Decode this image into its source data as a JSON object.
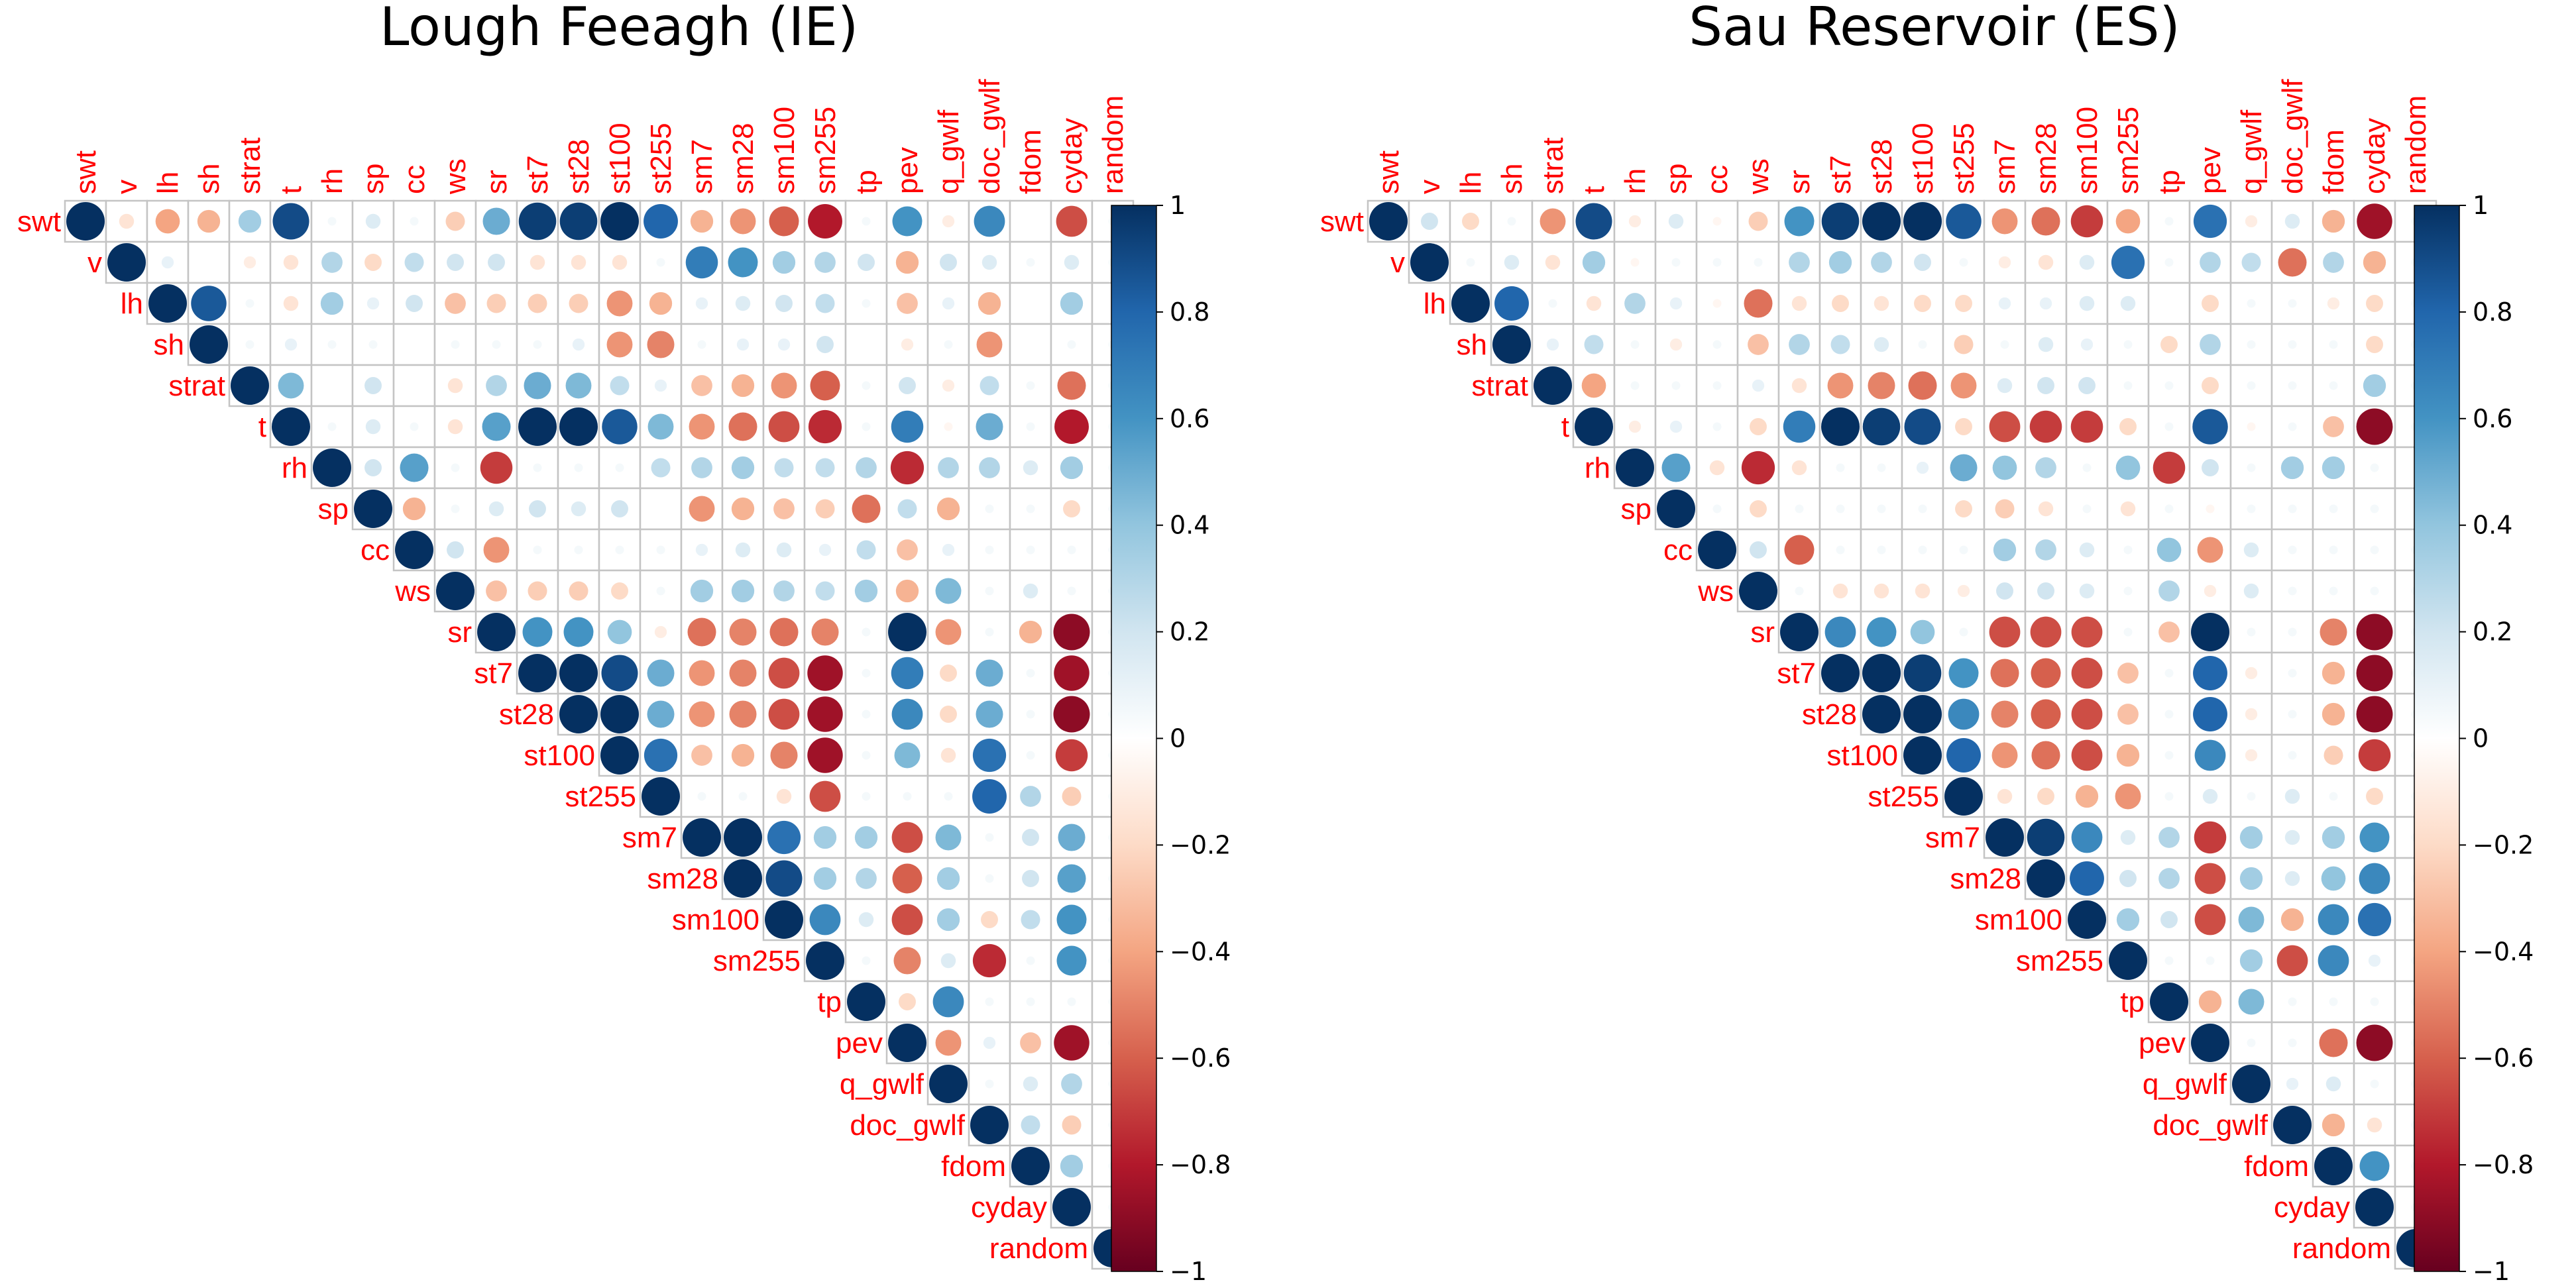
{
  "colorbar": {
    "min": -1,
    "max": 1,
    "tick_labels": [
      "1",
      "0.8",
      "0.6",
      "0.4",
      "0.2",
      "0",
      "−0.2",
      "−0.4",
      "−0.6",
      "−0.8",
      "−1"
    ],
    "colors": {
      "negative_end": "#67001f",
      "neg_mid": "#d6604d",
      "neutral": "#ffffff",
      "pos_mid": "#4393c3",
      "positive_end": "#053061"
    }
  },
  "chart_data": [
    {
      "type": "heatmap",
      "title": "Lough Feeagh (IE)",
      "variables": [
        "swt",
        "v",
        "lh",
        "sh",
        "strat",
        "t",
        "rh",
        "sp",
        "cc",
        "ws",
        "sr",
        "st7",
        "st28",
        "st100",
        "st255",
        "sm7",
        "sm28",
        "sm100",
        "sm255",
        "tp",
        "pev",
        "q_gwlf",
        "doc_gwlf",
        "fdom",
        "cyday",
        "random"
      ],
      "matrix": "upper-triangle",
      "rows": [
        [
          1.0,
          -0.15,
          -0.4,
          -0.35,
          0.35,
          0.9,
          0.05,
          0.15,
          0.05,
          -0.25,
          0.5,
          0.95,
          0.95,
          1.0,
          0.8,
          -0.35,
          -0.45,
          -0.6,
          -0.8,
          0.05,
          0.6,
          -0.1,
          0.65,
          0,
          -0.65,
          0.05
        ],
        [
          1.0,
          0.1,
          0,
          -0.1,
          -0.15,
          0.3,
          -0.2,
          0.25,
          0.2,
          0.2,
          -0.15,
          -0.15,
          -0.15,
          0.05,
          0.7,
          0.6,
          0.35,
          0.3,
          0.2,
          -0.35,
          0.2,
          0.15,
          0.05,
          0.15,
          0.05
        ],
        [
          1.0,
          0.85,
          0.05,
          -0.15,
          0.35,
          0.1,
          0.2,
          -0.3,
          -0.25,
          -0.25,
          -0.25,
          -0.45,
          -0.35,
          0.1,
          0.15,
          0.2,
          0.25,
          0.05,
          -0.3,
          0.1,
          -0.35,
          0,
          0.35,
          0
        ],
        [
          1.0,
          0.05,
          0.1,
          0.05,
          0.05,
          0,
          0.05,
          0.05,
          0.05,
          0.1,
          -0.45,
          -0.5,
          0.05,
          0.1,
          0.1,
          0.2,
          0,
          -0.1,
          0.05,
          -0.45,
          0,
          0.05,
          0.05
        ],
        [
          1.0,
          0.45,
          0,
          0.2,
          0,
          -0.15,
          0.3,
          0.5,
          0.45,
          0.25,
          0.1,
          -0.3,
          -0.35,
          -0.45,
          -0.6,
          0.05,
          0.2,
          -0.1,
          0.25,
          0.05,
          -0.55,
          0.05
        ],
        [
          1.0,
          0.05,
          0.15,
          0.05,
          -0.15,
          0.55,
          1.0,
          1.0,
          0.85,
          0.45,
          -0.45,
          -0.55,
          -0.65,
          -0.75,
          0.05,
          0.7,
          -0.05,
          0.5,
          0.05,
          -0.8,
          0.05
        ],
        [
          1.0,
          0.2,
          0.55,
          0.05,
          -0.7,
          0.05,
          0.05,
          0.05,
          0.25,
          0.3,
          0.35,
          0.25,
          0.25,
          0.3,
          -0.75,
          0.3,
          0.3,
          0.15,
          0.35,
          0.05
        ],
        [
          1.0,
          -0.35,
          0.05,
          0.15,
          0.2,
          0.15,
          0.2,
          0,
          -0.45,
          -0.35,
          -0.3,
          -0.25,
          -0.55,
          0.25,
          -0.35,
          0.05,
          0.05,
          -0.2,
          0.05
        ],
        [
          1.0,
          0.2,
          -0.45,
          0.05,
          0.05,
          0.05,
          0.05,
          0.1,
          0.15,
          0.15,
          0.1,
          0.25,
          -0.3,
          0.1,
          0.05,
          0.05,
          0.05,
          0.05
        ],
        [
          1.0,
          -0.3,
          -0.25,
          -0.25,
          -0.2,
          0.05,
          0.35,
          0.35,
          0.3,
          0.25,
          0.35,
          -0.35,
          0.45,
          0.05,
          0.15,
          0.05,
          0.05
        ],
        [
          1.0,
          0.6,
          0.6,
          0.4,
          -0.1,
          -0.55,
          -0.5,
          -0.55,
          -0.5,
          0.05,
          1.0,
          -0.45,
          0.05,
          -0.35,
          -0.9,
          0.05
        ],
        [
          1.0,
          1.0,
          0.9,
          0.5,
          -0.45,
          -0.5,
          -0.65,
          -0.85,
          0.05,
          0.7,
          -0.2,
          0.5,
          0.05,
          -0.85,
          0.05
        ],
        [
          1.0,
          1.0,
          0.5,
          -0.45,
          -0.5,
          -0.65,
          -0.85,
          0.05,
          0.65,
          -0.2,
          0.5,
          0.05,
          -0.9,
          0.05
        ],
        [
          1.0,
          0.75,
          -0.3,
          -0.35,
          -0.5,
          -0.85,
          0.05,
          0.45,
          -0.15,
          0.75,
          0.05,
          -0.7,
          0.05
        ],
        [
          1.0,
          0.05,
          0.05,
          -0.15,
          -0.65,
          0.05,
          0.05,
          0.05,
          0.8,
          0.3,
          -0.25,
          0.05
        ],
        [
          1.0,
          1.0,
          0.75,
          0.35,
          0.35,
          -0.65,
          0.45,
          0.05,
          0.2,
          0.5,
          0.05
        ],
        [
          1.0,
          0.9,
          0.35,
          0.3,
          -0.6,
          0.35,
          0.05,
          0.2,
          0.55,
          0.05
        ],
        [
          1.0,
          0.65,
          0.15,
          -0.65,
          0.35,
          -0.2,
          0.25,
          0.6,
          0.05
        ],
        [
          1.0,
          0.05,
          -0.5,
          0.15,
          -0.75,
          0.05,
          0.6,
          0.05
        ],
        [
          1.0,
          -0.2,
          0.65,
          0.05,
          0.05,
          0.05,
          0.05
        ],
        [
          1.0,
          -0.45,
          0.1,
          -0.3,
          -0.85,
          0.05
        ],
        [
          1.0,
          0.05,
          0.15,
          0.3,
          0.05
        ],
        [
          1.0,
          0.25,
          -0.25,
          0.05
        ],
        [
          1.0,
          0.35,
          0.05
        ],
        [
          1.0,
          0.05
        ],
        [
          1.0
        ]
      ]
    },
    {
      "type": "heatmap",
      "title": "Sau Reservoir (ES)",
      "variables": [
        "swt",
        "v",
        "lh",
        "sh",
        "strat",
        "t",
        "rh",
        "sp",
        "cc",
        "ws",
        "sr",
        "st7",
        "st28",
        "st100",
        "st255",
        "sm7",
        "sm28",
        "sm100",
        "sm255",
        "tp",
        "pev",
        "q_gwlf",
        "doc_gwlf",
        "fdom",
        "cyday",
        "random"
      ],
      "matrix": "upper-triangle",
      "rows": [
        [
          1.0,
          0.2,
          -0.2,
          0.05,
          -0.45,
          0.9,
          -0.1,
          0.15,
          -0.05,
          -0.25,
          0.6,
          0.95,
          1.0,
          1.0,
          0.85,
          -0.45,
          -0.55,
          -0.7,
          -0.4,
          0.05,
          0.75,
          -0.1,
          0.15,
          -0.35,
          -0.85,
          0.05
        ],
        [
          1.0,
          0.05,
          0.15,
          -0.15,
          0.35,
          -0.05,
          0.05,
          0.05,
          0.05,
          0.3,
          0.35,
          0.3,
          0.2,
          0.05,
          -0.1,
          -0.15,
          0.15,
          0.75,
          0.05,
          0.3,
          0.25,
          -0.55,
          0.3,
          -0.35,
          0.05
        ],
        [
          1.0,
          0.8,
          0.05,
          -0.15,
          0.3,
          0.1,
          -0.05,
          -0.55,
          -0.15,
          -0.2,
          -0.15,
          -0.2,
          -0.2,
          0.1,
          0.1,
          0.15,
          0.15,
          0,
          -0.2,
          0.05,
          0.05,
          -0.1,
          -0.2,
          0.05
        ],
        [
          1.0,
          0.1,
          0.25,
          0.05,
          -0.1,
          0.05,
          -0.3,
          0.3,
          0.25,
          0.15,
          0.05,
          -0.25,
          0.05,
          0.15,
          0.1,
          0.05,
          -0.2,
          0.3,
          0.05,
          0.05,
          0.05,
          -0.2,
          0.05
        ],
        [
          1.0,
          -0.4,
          0.05,
          0.05,
          0.05,
          0.1,
          -0.15,
          -0.45,
          -0.5,
          -0.55,
          -0.45,
          0.15,
          0.2,
          0.2,
          0.05,
          0.05,
          -0.2,
          0.05,
          0.05,
          0.05,
          0.35,
          0.05
        ],
        [
          1.0,
          -0.1,
          0.1,
          0.05,
          -0.2,
          0.7,
          1.0,
          0.95,
          0.9,
          -0.2,
          -0.65,
          -0.7,
          -0.7,
          -0.2,
          0.05,
          0.85,
          -0.05,
          0.05,
          -0.3,
          -0.9,
          0.05
        ],
        [
          1.0,
          0.55,
          -0.15,
          -0.75,
          -0.15,
          0.05,
          0.05,
          0.1,
          0.5,
          0.4,
          0.3,
          0.05,
          0.4,
          -0.7,
          0.2,
          0.05,
          0.35,
          0.35,
          0.05
        ],
        [
          1.0,
          0.05,
          -0.2,
          0.05,
          0.05,
          0.05,
          0.05,
          -0.2,
          -0.25,
          -0.15,
          0.05,
          -0.15,
          0.05,
          -0.05,
          0.05,
          0.05,
          0.05,
          0.05
        ],
        [
          1.0,
          0.2,
          -0.6,
          0.05,
          0.05,
          0.05,
          0.05,
          0.35,
          0.3,
          0.15,
          0.05,
          0.4,
          -0.45,
          0.15,
          0.05,
          0.05,
          0.05,
          0.05
        ],
        [
          1.0,
          0.05,
          -0.15,
          -0.15,
          -0.15,
          -0.1,
          0.2,
          0.2,
          0.15,
          0.05,
          0.3,
          -0.1,
          0.15,
          0.05,
          0.05,
          0.05,
          0.05
        ],
        [
          1.0,
          0.65,
          0.6,
          0.4,
          0.05,
          -0.65,
          -0.65,
          -0.65,
          0.05,
          -0.3,
          1.0,
          0.05,
          0.05,
          -0.5,
          -0.9,
          0.05
        ],
        [
          1.0,
          1.0,
          0.95,
          0.6,
          -0.55,
          -0.6,
          -0.65,
          -0.3,
          0.05,
          0.8,
          -0.1,
          0.05,
          -0.35,
          -0.9,
          0.05
        ],
        [
          1.0,
          1.0,
          0.65,
          -0.5,
          -0.6,
          -0.65,
          -0.3,
          0.05,
          0.8,
          -0.1,
          0.05,
          -0.35,
          -0.9,
          0.05
        ],
        [
          1.0,
          0.8,
          -0.45,
          -0.55,
          -0.65,
          -0.35,
          0.05,
          0.65,
          -0.1,
          0.05,
          -0.25,
          -0.7,
          0.05
        ],
        [
          1.0,
          -0.15,
          -0.2,
          -0.35,
          -0.45,
          0.05,
          0.15,
          0.05,
          0.15,
          0.05,
          -0.2,
          0.05
        ],
        [
          1.0,
          0.95,
          0.65,
          0.15,
          0.3,
          -0.7,
          0.35,
          0.15,
          0.35,
          0.6,
          0.05
        ],
        [
          1.0,
          0.8,
          0.2,
          0.3,
          -0.65,
          0.35,
          0.15,
          0.4,
          0.65,
          0.05
        ],
        [
          1.0,
          0.35,
          0.2,
          -0.65,
          0.45,
          -0.35,
          0.65,
          0.75,
          0.05
        ],
        [
          1.0,
          0.05,
          0.05,
          0.35,
          -0.65,
          0.65,
          0.1,
          0.05
        ],
        [
          1.0,
          -0.35,
          0.45,
          0.05,
          0.05,
          0.05,
          0.05
        ],
        [
          1.0,
          0.05,
          0.05,
          -0.55,
          -0.9,
          0.05
        ],
        [
          1.0,
          0.1,
          0.15,
          0.05,
          0.05
        ],
        [
          1.0,
          -0.35,
          -0.15,
          0.05
        ],
        [
          1.0,
          0.6,
          0.05
        ],
        [
          1.0,
          0.05
        ],
        [
          1.0
        ]
      ]
    }
  ]
}
